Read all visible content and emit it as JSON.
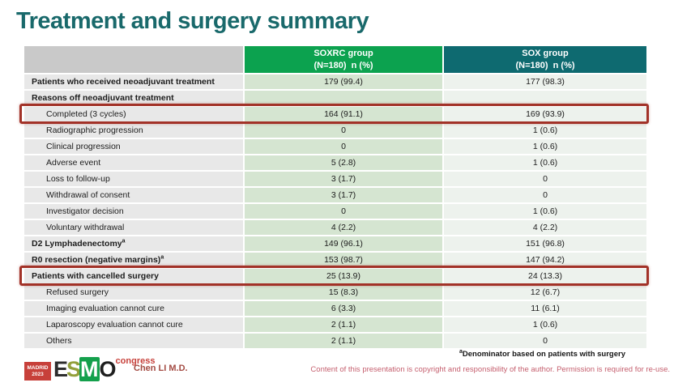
{
  "slide": {
    "title": "Treatment and surgery summary"
  },
  "table": {
    "columns": [
      {
        "line1": "SOXRC group",
        "line2": "(N=180)  n (%)"
      },
      {
        "line1": "SOX group",
        "line2": "(N=180)  n (%)"
      }
    ],
    "rows": [
      {
        "label": "Patients who received neoadjuvant treatment",
        "soxrc": "179 (99.4)",
        "sox": "177 (98.3)",
        "bold": true,
        "indent": 0,
        "highlighted": false
      },
      {
        "label": "Reasons off neoadjuvant treatment",
        "soxrc": "",
        "sox": "",
        "bold": true,
        "indent": 0,
        "highlighted": false
      },
      {
        "label": "Completed (3 cycles)",
        "soxrc": "164 (91.1)",
        "sox": "169 (93.9)",
        "bold": false,
        "indent": 1,
        "highlighted": true
      },
      {
        "label": "Radiographic progression",
        "soxrc": "0",
        "sox": "1 (0.6)",
        "bold": false,
        "indent": 1,
        "highlighted": false
      },
      {
        "label": "Clinical progression",
        "soxrc": "0",
        "sox": "1 (0.6)",
        "bold": false,
        "indent": 1,
        "highlighted": false
      },
      {
        "label": "Adverse event",
        "soxrc": "5 (2.8)",
        "sox": "1 (0.6)",
        "bold": false,
        "indent": 1,
        "highlighted": false
      },
      {
        "label": "Loss to follow-up",
        "soxrc": "3 (1.7)",
        "sox": "0",
        "bold": false,
        "indent": 1,
        "highlighted": false
      },
      {
        "label": "Withdrawal of consent",
        "soxrc": "3 (1.7)",
        "sox": "0",
        "bold": false,
        "indent": 1,
        "highlighted": false
      },
      {
        "label": "Investigator decision",
        "soxrc": "0",
        "sox": "1 (0.6)",
        "bold": false,
        "indent": 1,
        "highlighted": false
      },
      {
        "label": "Voluntary withdrawal",
        "soxrc": "4 (2.2)",
        "sox": "4 (2.2)",
        "bold": false,
        "indent": 1,
        "highlighted": false
      },
      {
        "label": "D2 Lymphadenectomy",
        "sup": "a",
        "soxrc": "149 (96.1)",
        "sox": "151 (96.8)",
        "bold": true,
        "indent": 0,
        "highlighted": false
      },
      {
        "label": "R0 resection (negative margins)",
        "sup": "a",
        "soxrc": "153 (98.7)",
        "sox": "147 (94.2)",
        "bold": true,
        "indent": 0,
        "highlighted": false
      },
      {
        "label": "Patients with cancelled surgery",
        "soxrc": "25 (13.9)",
        "sox": "24 (13.3)",
        "bold": true,
        "indent": 0,
        "highlighted": true
      },
      {
        "label": "Refused surgery",
        "soxrc": "15 (8.3)",
        "sox": "12 (6.7)",
        "bold": false,
        "indent": 1,
        "highlighted": false
      },
      {
        "label": "Imaging evaluation cannot cure",
        "soxrc": "6 (3.3)",
        "sox": "11 (6.1)",
        "bold": false,
        "indent": 1,
        "highlighted": false
      },
      {
        "label": "Laparoscopy evaluation cannot cure",
        "soxrc": "2 (1.1)",
        "sox": "1 (0.6)",
        "bold": false,
        "indent": 1,
        "highlighted": false
      },
      {
        "label": "Others",
        "soxrc": "2 (1.1)",
        "sox": "0",
        "bold": false,
        "indent": 1,
        "highlighted": false
      }
    ]
  },
  "footnote": {
    "sup": "a",
    "text": "Denominator based on patients with surgery"
  },
  "footer": {
    "logo": {
      "city": "MADRID",
      "year": "2023",
      "letters": [
        "E",
        "S",
        "M",
        "O"
      ],
      "congress": "congress"
    },
    "presenter": "Chen LI M.D.",
    "copyright": "Content of this presentation is copyright and responsibility of the author. Permission is required for re-use."
  },
  "colors": {
    "title_teal": "#19696b",
    "header_green": "#0ca24f",
    "header_teal": "#0e6a70",
    "label_header_grey": "#c9c9c9",
    "label_cell_grey": "#e8e8e8",
    "soxrc_cell_green": "#d5e5d1",
    "sox_cell_pale": "#edf2ed",
    "highlight_border_red": "#a23228",
    "logo_red": "#c7403a",
    "copyright_rose": "#c55f6e"
  }
}
